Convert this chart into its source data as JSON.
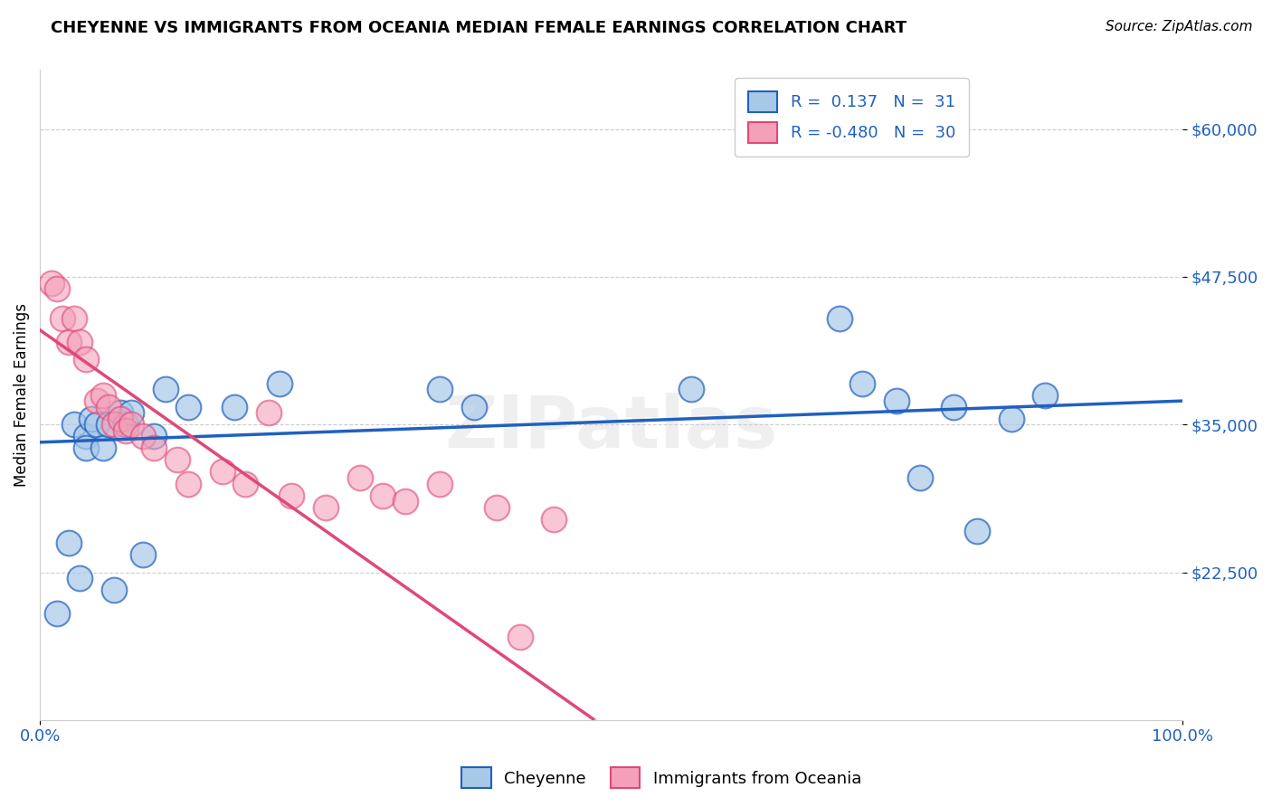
{
  "title": "CHEYENNE VS IMMIGRANTS FROM OCEANIA MEDIAN FEMALE EARNINGS CORRELATION CHART",
  "source": "Source: ZipAtlas.com",
  "ylabel": "Median Female Earnings",
  "xlim": [
    0,
    1.0
  ],
  "ylim": [
    10000,
    65000
  ],
  "yticks": [
    22500,
    35000,
    47500,
    60000
  ],
  "ytick_labels": [
    "$22,500",
    "$35,000",
    "$47,500",
    "$60,000"
  ],
  "xtick_labels": [
    "0.0%",
    "100.0%"
  ],
  "blue_color": "#a8c8e8",
  "pink_color": "#f4a0b8",
  "line_blue": "#2060c0",
  "line_pink": "#e04878",
  "watermark": "ZIPatlas",
  "cheyenne_x": [
    0.015,
    0.025,
    0.03,
    0.035,
    0.04,
    0.04,
    0.045,
    0.05,
    0.055,
    0.06,
    0.065,
    0.07,
    0.075,
    0.08,
    0.09,
    0.1,
    0.11,
    0.13,
    0.17,
    0.21,
    0.35,
    0.38,
    0.57,
    0.7,
    0.72,
    0.75,
    0.77,
    0.8,
    0.82,
    0.85,
    0.88
  ],
  "cheyenne_y": [
    19000,
    25000,
    35000,
    22000,
    34000,
    33000,
    35500,
    35000,
    33000,
    35000,
    21000,
    36000,
    35000,
    36000,
    24000,
    34000,
    38000,
    36500,
    36500,
    38500,
    38000,
    36500,
    38000,
    44000,
    38500,
    37000,
    30500,
    36500,
    26000,
    35500,
    37500
  ],
  "oceania_x": [
    0.01,
    0.015,
    0.02,
    0.025,
    0.03,
    0.035,
    0.04,
    0.05,
    0.055,
    0.06,
    0.065,
    0.07,
    0.075,
    0.08,
    0.09,
    0.1,
    0.12,
    0.13,
    0.16,
    0.18,
    0.2,
    0.22,
    0.25,
    0.28,
    0.3,
    0.32,
    0.35,
    0.4,
    0.42,
    0.45
  ],
  "oceania_y": [
    47000,
    46500,
    44000,
    42000,
    44000,
    42000,
    40500,
    37000,
    37500,
    36500,
    35000,
    35500,
    34500,
    35000,
    34000,
    33000,
    32000,
    30000,
    31000,
    30000,
    36000,
    29000,
    28000,
    30500,
    29000,
    28500,
    30000,
    28000,
    17000,
    27000
  ]
}
